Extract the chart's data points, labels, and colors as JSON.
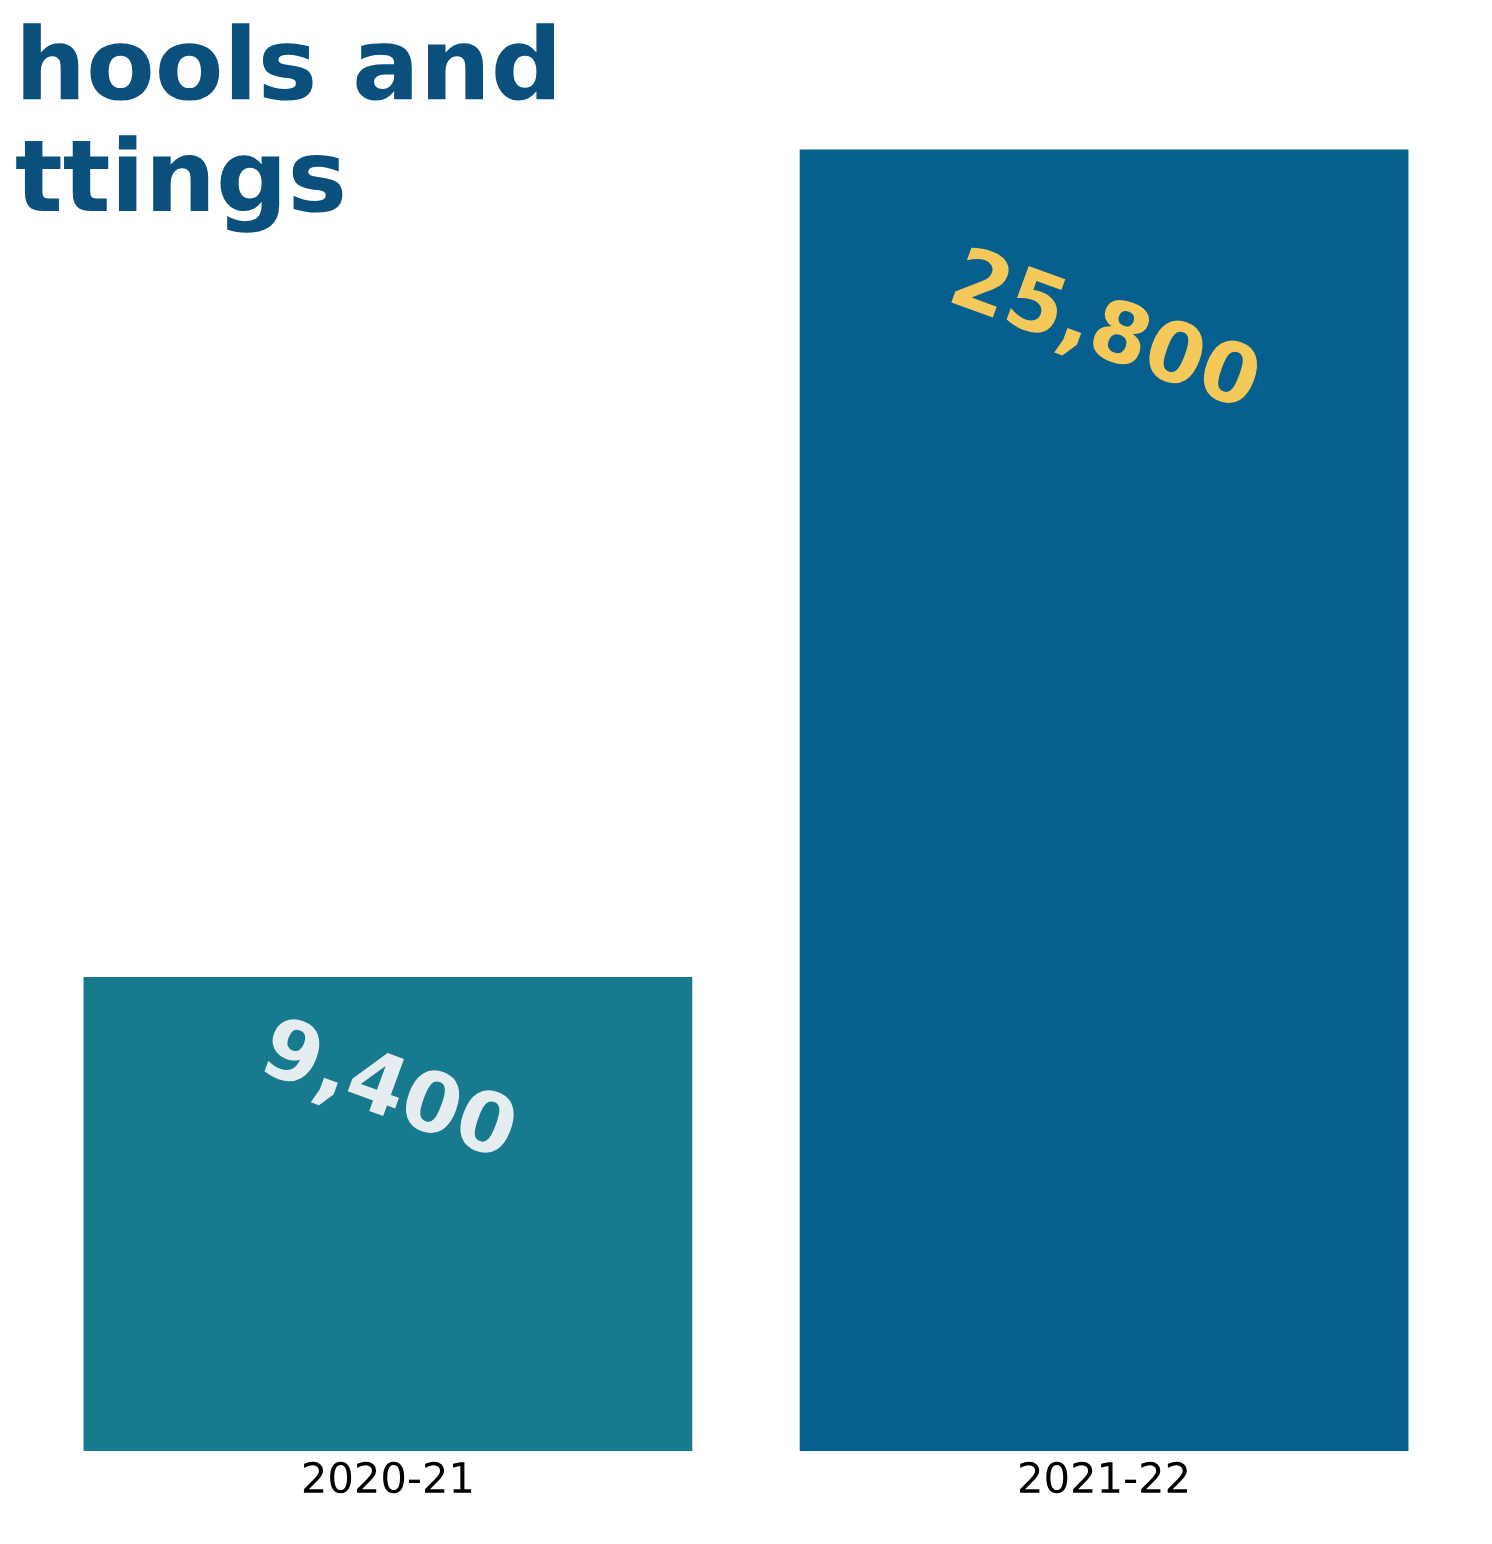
{
  "chart_data": {
    "type": "bar",
    "title": "hools and\nttings",
    "categories": [
      "2020-21",
      "2021-22"
    ],
    "values": [
      9400,
      25800
    ],
    "colors": [
      "#177a8f",
      "#055f8f"
    ],
    "value_labels": [
      "9,400",
      "25,800"
    ]
  }
}
